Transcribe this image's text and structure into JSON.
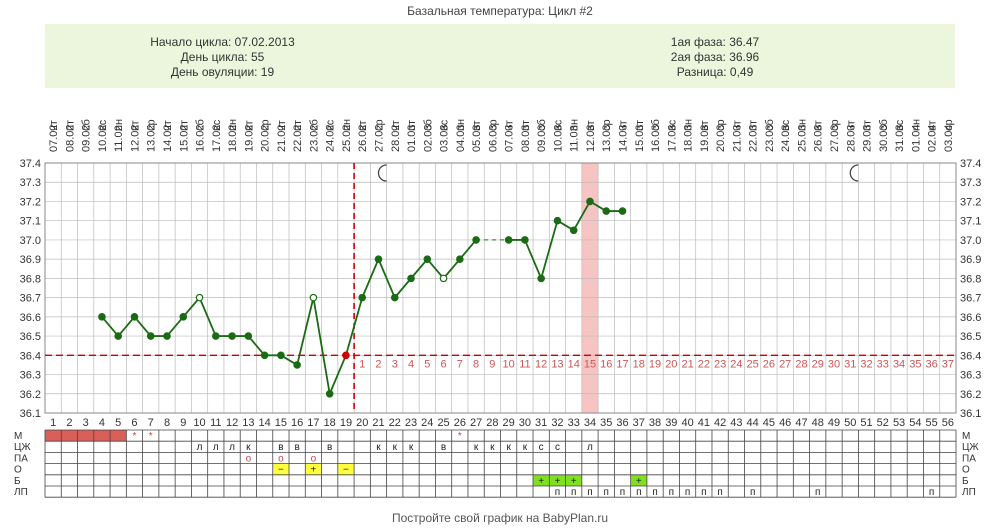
{
  "title": "Базальная температура: Цикл #2",
  "info": {
    "start": "Начало цикла: 07.02.2013",
    "day": "День цикла: 55",
    "ovulation": "День овуляции: 19",
    "phase1": "1ая фаза: 36.47",
    "phase2": "2ая фаза: 36.96",
    "diff": "Разница: 0,49"
  },
  "footer": "Постройте свой график на BabyPlan.ru",
  "colors": {
    "line": "#1a6b14",
    "coverline": "#cc0000",
    "menses": "#d9605a",
    "highlight": "#f7c4c4",
    "green_cell": "#80e020",
    "yellow_cell": "#ffff40",
    "grid": "#bbbbbb"
  },
  "icons": [
    "moon-icon",
    "moon-icon"
  ],
  "chart_data": {
    "type": "line",
    "title": "Базальная температура: Цикл #2",
    "dates": [
      "07.02",
      "08.02",
      "09.02",
      "10.02",
      "11.02",
      "12.02",
      "13.02",
      "14.02",
      "15.02",
      "16.02",
      "17.02",
      "18.02",
      "19.02",
      "20.02",
      "21.02",
      "22.02",
      "23.02",
      "24.02",
      "25.02",
      "26.02",
      "27.02",
      "28.02",
      "01.03",
      "02.03",
      "03.03",
      "04.03",
      "05.03",
      "06.03",
      "07.03",
      "08.03",
      "09.03",
      "10.03",
      "11.03",
      "12.03",
      "13.03",
      "14.03",
      "15.03",
      "16.03",
      "17.03",
      "18.03",
      "19.03",
      "20.03",
      "21.03",
      "22.03",
      "23.03",
      "24.03",
      "25.03",
      "26.03",
      "27.03",
      "28.03",
      "29.03",
      "30.03",
      "31.03",
      "01.04",
      "02.04",
      "03.04"
    ],
    "weekdays": [
      "чт",
      "пт",
      "сб",
      "вс",
      "пн",
      "вт",
      "ср",
      "чт",
      "пт",
      "сб",
      "вс",
      "пн",
      "вт",
      "ср",
      "чт",
      "пт",
      "сб",
      "вс",
      "пн",
      "вт",
      "ср",
      "чт",
      "пт",
      "сб",
      "вс",
      "пн",
      "вт",
      "ср",
      "чт",
      "пт",
      "сб",
      "вс",
      "пн",
      "вт",
      "ср",
      "чт",
      "пт",
      "сб",
      "вс",
      "пн",
      "вт",
      "ср",
      "чт",
      "пт",
      "сб",
      "вс",
      "пн",
      "вт",
      "ср",
      "чт",
      "пт",
      "сб",
      "вс",
      "пн",
      "вт",
      "ср"
    ],
    "days": [
      1,
      2,
      3,
      4,
      5,
      6,
      7,
      8,
      9,
      10,
      11,
      12,
      13,
      14,
      15,
      16,
      17,
      18,
      19,
      20,
      21,
      22,
      23,
      24,
      25,
      26,
      27,
      28,
      29,
      30,
      31,
      32,
      33,
      34,
      35,
      36,
      37,
      38,
      39,
      40,
      41,
      42,
      43,
      44,
      45,
      46,
      47,
      48,
      49,
      50,
      51,
      52,
      53,
      54,
      55,
      56
    ],
    "temps": [
      null,
      null,
      null,
      36.6,
      36.5,
      36.6,
      36.5,
      36.5,
      36.6,
      36.7,
      36.5,
      36.5,
      36.5,
      36.4,
      36.4,
      36.35,
      36.7,
      36.2,
      36.4,
      36.7,
      36.9,
      36.7,
      36.8,
      36.9,
      36.8,
      36.9,
      37.0,
      null,
      37.0,
      37.0,
      36.8,
      37.1,
      37.05,
      37.2,
      37.15,
      37.15,
      null,
      null,
      null,
      null,
      null,
      null,
      null,
      null,
      null,
      null,
      null,
      null,
      null,
      null,
      null,
      null,
      null,
      null,
      null,
      null
    ],
    "open_points": [
      10,
      17,
      25
    ],
    "y_ticks": [
      "37.4",
      "37.3",
      "37.2",
      "37.1",
      "37.0",
      "36.9",
      "36.8",
      "36.7",
      "36.6",
      "36.5",
      "36.4",
      "36.3",
      "36.2",
      "36.1"
    ],
    "ylim": [
      36.1,
      37.4
    ],
    "coverline": 36.4,
    "ovulation_day": 19,
    "highlight_day": 34,
    "moon_days": [
      21,
      50
    ],
    "luteal_numbers": [
      "1",
      "2",
      "3",
      "4",
      "5",
      "6",
      "7",
      "8",
      "9",
      "10",
      "11",
      "12",
      "13",
      "14",
      "15",
      "16",
      "17",
      "18",
      "19",
      "20",
      "21",
      "22",
      "23",
      "24",
      "25",
      "26",
      "27",
      "28",
      "29",
      "30",
      "31",
      "32",
      "33",
      "34",
      "35",
      "36",
      "37"
    ],
    "rows": [
      {
        "label": "М",
        "cells": [
          {
            "d": 1,
            "t": "",
            "fill": "menses"
          },
          {
            "d": 2,
            "t": "",
            "fill": "menses"
          },
          {
            "d": 3,
            "t": "",
            "fill": "menses"
          },
          {
            "d": 4,
            "t": "",
            "fill": "menses"
          },
          {
            "d": 5,
            "t": "",
            "fill": "menses"
          },
          {
            "d": 6,
            "t": "*",
            "c": "#cc4444"
          },
          {
            "d": 7,
            "t": "*",
            "c": "#cc4444"
          },
          {
            "d": 26,
            "t": "*",
            "c": "#cc4444"
          }
        ]
      },
      {
        "label": "ЦЖ",
        "cells": [
          {
            "d": 10,
            "t": "л"
          },
          {
            "d": 11,
            "t": "л"
          },
          {
            "d": 12,
            "t": "л"
          },
          {
            "d": 13,
            "t": "к"
          },
          {
            "d": 15,
            "t": "в"
          },
          {
            "d": 16,
            "t": "в"
          },
          {
            "d": 18,
            "t": "в"
          },
          {
            "d": 21,
            "t": "к"
          },
          {
            "d": 22,
            "t": "к"
          },
          {
            "d": 23,
            "t": "к"
          },
          {
            "d": 25,
            "t": "в"
          },
          {
            "d": 27,
            "t": "к"
          },
          {
            "d": 28,
            "t": "к"
          },
          {
            "d": 29,
            "t": "к"
          },
          {
            "d": 30,
            "t": "к"
          },
          {
            "d": 31,
            "t": "с"
          },
          {
            "d": 32,
            "t": "с"
          },
          {
            "d": 34,
            "t": "л"
          }
        ]
      },
      {
        "label": "ПА",
        "cells": [
          {
            "d": 13,
            "t": "o",
            "c": "#cc4444"
          },
          {
            "d": 15,
            "t": "o",
            "c": "#cc4444"
          },
          {
            "d": 17,
            "t": "o",
            "c": "#cc4444"
          }
        ]
      },
      {
        "label": "О",
        "cells": [
          {
            "d": 15,
            "t": "−",
            "fill": "yellow"
          },
          {
            "d": 17,
            "t": "+",
            "fill": "yellow"
          },
          {
            "d": 19,
            "t": "−",
            "fill": "yellow"
          }
        ]
      },
      {
        "label": "Б",
        "cells": [
          {
            "d": 31,
            "t": "+",
            "fill": "green"
          },
          {
            "d": 32,
            "t": "+",
            "fill": "green"
          },
          {
            "d": 33,
            "t": "+",
            "fill": "green"
          },
          {
            "d": 37,
            "t": "+",
            "fill": "green"
          }
        ]
      },
      {
        "label": "ЛП",
        "cells": [
          {
            "d": 32,
            "t": "п"
          },
          {
            "d": 33,
            "t": "п"
          },
          {
            "d": 34,
            "t": "п"
          },
          {
            "d": 35,
            "t": "п"
          },
          {
            "d": 36,
            "t": "п"
          },
          {
            "d": 37,
            "t": "п"
          },
          {
            "d": 38,
            "t": "п"
          },
          {
            "d": 39,
            "t": "п"
          },
          {
            "d": 40,
            "t": "п"
          },
          {
            "d": 41,
            "t": "п"
          },
          {
            "d": 42,
            "t": "п"
          },
          {
            "d": 44,
            "t": "п"
          },
          {
            "d": 48,
            "t": "п"
          },
          {
            "d": 55,
            "t": "п"
          }
        ]
      }
    ]
  }
}
